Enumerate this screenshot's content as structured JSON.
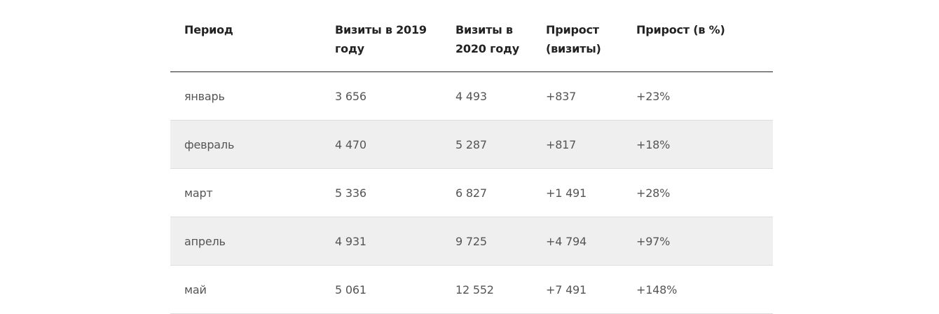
{
  "table": {
    "headers": [
      "Период",
      "Визиты в 2019 году",
      "Визиты в 2020 году",
      "Прирост (визиты)",
      "Прирост (в %)"
    ],
    "rows": [
      [
        "январь",
        "3 656",
        "4 493",
        "+837",
        "+23%"
      ],
      [
        "февраль",
        "4 470",
        "5 287",
        "+817",
        "+18%"
      ],
      [
        "март",
        "5 336",
        "6 827",
        "+1 491",
        "+28%"
      ],
      [
        "апрель",
        "4 931",
        "9 725",
        "+4 794",
        "+97%"
      ],
      [
        "май",
        "5 061",
        "12 552",
        "+7 491",
        "+148%"
      ]
    ]
  }
}
